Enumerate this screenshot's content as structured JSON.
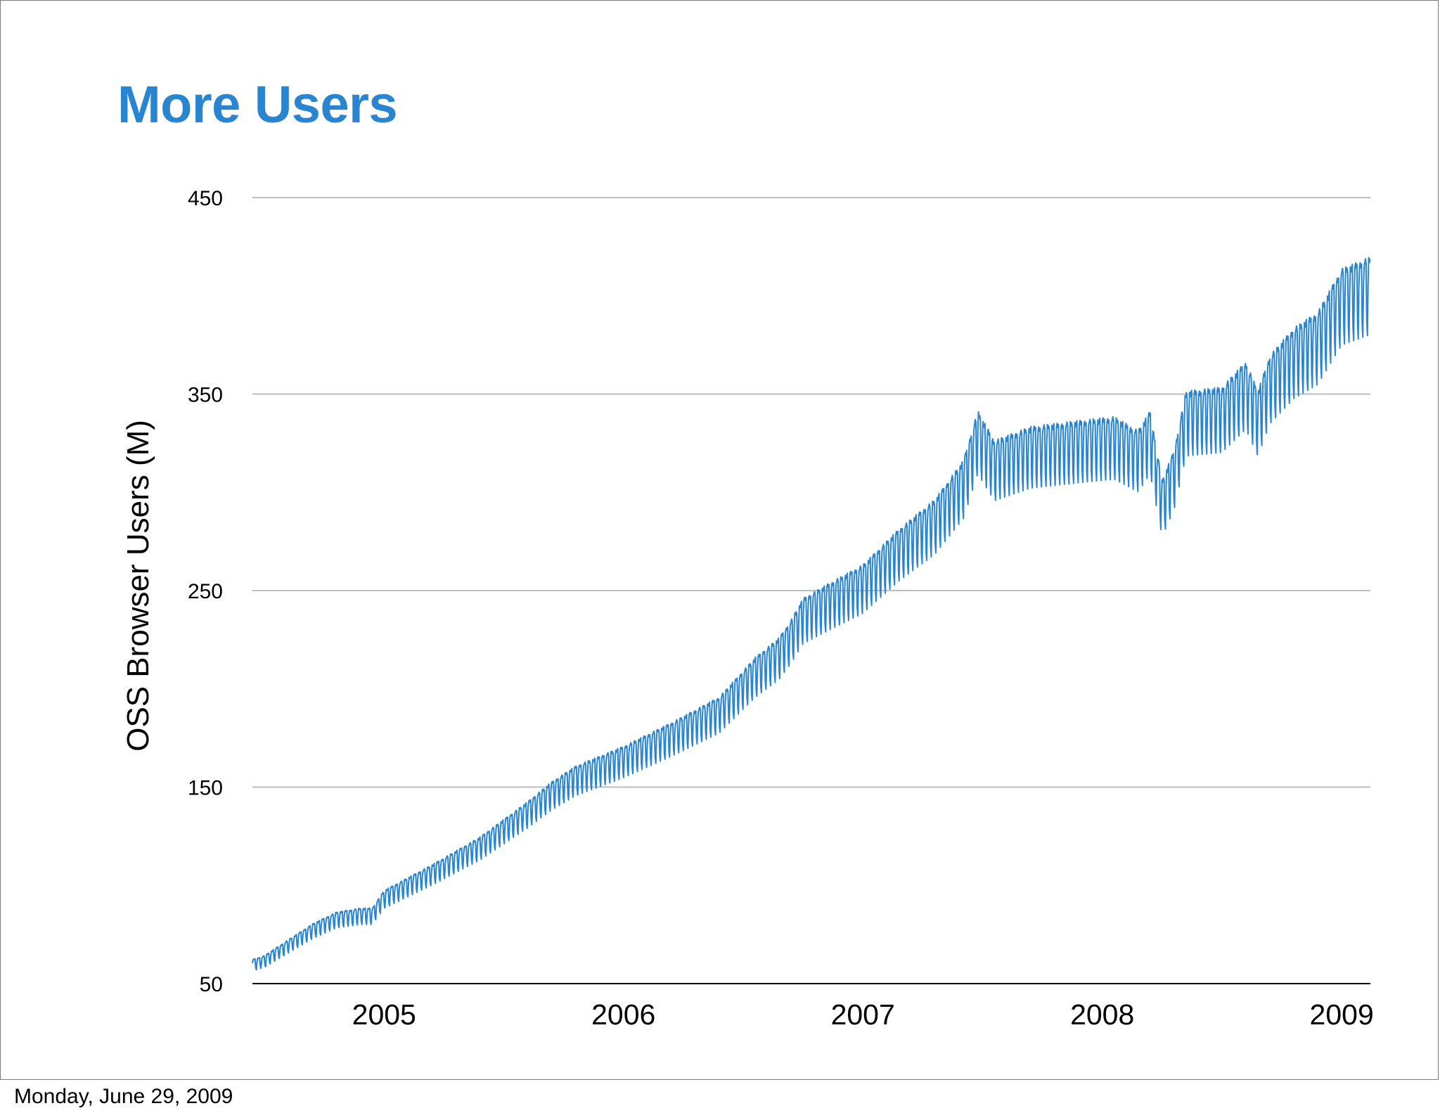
{
  "slide": {
    "title": "More Users",
    "footer_date": "Monday, June 29, 2009"
  },
  "chart_data": {
    "type": "line",
    "title": "",
    "xlabel": "",
    "ylabel": "OSS Browser Users (M)",
    "ylim": [
      50,
      450
    ],
    "yticks": [
      50,
      150,
      250,
      350,
      450
    ],
    "xlim": [
      2004.75,
      2009.42
    ],
    "xticks": [
      {
        "label": "2005",
        "x": 2005.3
      },
      {
        "label": "2006",
        "x": 2006.3
      },
      {
        "label": "2007",
        "x": 2007.3
      },
      {
        "label": "2008",
        "x": 2008.3
      },
      {
        "label": "2009",
        "x": 2009.3
      }
    ],
    "grid": true,
    "legend": "none",
    "series": [
      {
        "color": "#2a85d0",
        "weekly_dip_fraction": 0.09,
        "trend": [
          [
            2004.75,
            62
          ],
          [
            2004.8,
            64
          ],
          [
            2004.9,
            72
          ],
          [
            2005.0,
            80
          ],
          [
            2005.1,
            86
          ],
          [
            2005.2,
            88
          ],
          [
            2005.25,
            88
          ],
          [
            2005.3,
            97
          ],
          [
            2005.5,
            110
          ],
          [
            2005.7,
            124
          ],
          [
            2005.9,
            142
          ],
          [
            2006.0,
            152
          ],
          [
            2006.1,
            160
          ],
          [
            2006.2,
            165
          ],
          [
            2006.3,
            170
          ],
          [
            2006.5,
            182
          ],
          [
            2006.7,
            195
          ],
          [
            2006.85,
            215
          ],
          [
            2006.95,
            225
          ],
          [
            2007.0,
            234
          ],
          [
            2007.05,
            245
          ],
          [
            2007.15,
            252
          ],
          [
            2007.3,
            262
          ],
          [
            2007.45,
            280
          ],
          [
            2007.6,
            295
          ],
          [
            2007.72,
            315
          ],
          [
            2007.78,
            340
          ],
          [
            2007.85,
            325
          ],
          [
            2008.0,
            332
          ],
          [
            2008.2,
            335
          ],
          [
            2008.35,
            337
          ],
          [
            2008.45,
            330
          ],
          [
            2008.5,
            340
          ],
          [
            2008.55,
            305
          ],
          [
            2008.6,
            320
          ],
          [
            2008.65,
            350
          ],
          [
            2008.8,
            352
          ],
          [
            2008.9,
            365
          ],
          [
            2008.95,
            350
          ],
          [
            2009.0,
            368
          ],
          [
            2009.1,
            382
          ],
          [
            2009.2,
            390
          ],
          [
            2009.3,
            412
          ],
          [
            2009.42,
            418
          ]
        ]
      }
    ]
  }
}
